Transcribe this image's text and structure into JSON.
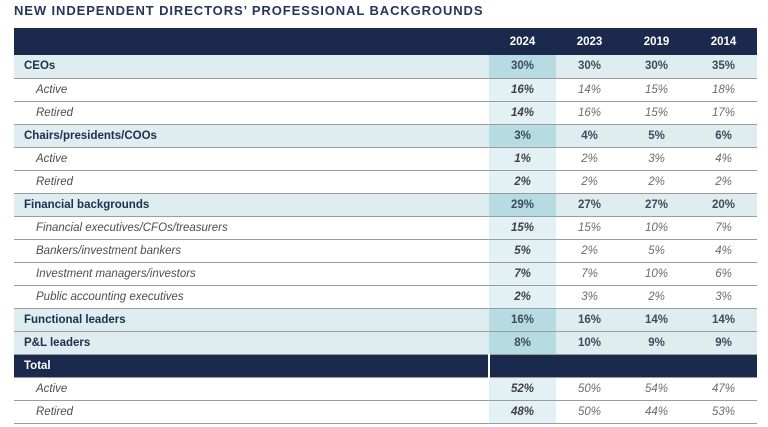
{
  "title": "NEW INDEPENDENT DIRECTORS’ PROFESSIONAL BACKGROUNDS",
  "colors": {
    "navy": "#1b2a4c",
    "title_navy": "#24365c",
    "category_row_bg": "#ddedf0",
    "category_2024_bg": "#b6dbe3",
    "sub_2024_bg": "#e4f1f4",
    "row_divider": "#9c9c9c",
    "sub_value_gray": "#6b6c6f"
  },
  "chart_data": {
    "type": "table",
    "title": "NEW INDEPENDENT DIRECTORS’ PROFESSIONAL BACKGROUNDS",
    "highlight_column": "2024",
    "legend_position": "none",
    "grid": "horizontal-row-dividers",
    "columns": [
      "2024",
      "2023",
      "2019",
      "2014"
    ],
    "rows": [
      {
        "label": "CEOs",
        "type": "category",
        "values": [
          "30%",
          "30%",
          "30%",
          "35%"
        ]
      },
      {
        "label": "Active",
        "type": "sub",
        "values": [
          "16%",
          "14%",
          "15%",
          "18%"
        ]
      },
      {
        "label": "Retired",
        "type": "sub",
        "values": [
          "14%",
          "16%",
          "15%",
          "17%"
        ]
      },
      {
        "label": "Chairs/presidents/COOs",
        "type": "category",
        "values": [
          "3%",
          "4%",
          "5%",
          "6%"
        ]
      },
      {
        "label": "Active",
        "type": "sub",
        "values": [
          "1%",
          "2%",
          "3%",
          "4%"
        ]
      },
      {
        "label": "Retired",
        "type": "sub",
        "values": [
          "2%",
          "2%",
          "2%",
          "2%"
        ]
      },
      {
        "label": "Financial backgrounds",
        "type": "category",
        "values": [
          "29%",
          "27%",
          "27%",
          "20%"
        ]
      },
      {
        "label": "Financial executives/CFOs/treasurers",
        "type": "sub",
        "values": [
          "15%",
          "15%",
          "10%",
          "7%"
        ]
      },
      {
        "label": "Bankers/investment bankers",
        "type": "sub",
        "values": [
          "5%",
          "2%",
          "5%",
          "4%"
        ]
      },
      {
        "label": "Investment managers/investors",
        "type": "sub",
        "values": [
          "7%",
          "7%",
          "10%",
          "6%"
        ]
      },
      {
        "label": "Public accounting executives",
        "type": "sub",
        "values": [
          "2%",
          "3%",
          "2%",
          "3%"
        ]
      },
      {
        "label": "Functional leaders",
        "type": "category",
        "values": [
          "16%",
          "16%",
          "14%",
          "14%"
        ]
      },
      {
        "label": "P&L leaders",
        "type": "category",
        "values": [
          "8%",
          "10%",
          "9%",
          "9%"
        ]
      },
      {
        "label": "Total",
        "type": "total",
        "values": [
          "",
          "",
          "",
          ""
        ]
      },
      {
        "label": "Active",
        "type": "sub",
        "values": [
          "52%",
          "50%",
          "54%",
          "47%"
        ]
      },
      {
        "label": "Retired",
        "type": "sub",
        "values": [
          "48%",
          "50%",
          "44%",
          "53%"
        ]
      }
    ]
  }
}
